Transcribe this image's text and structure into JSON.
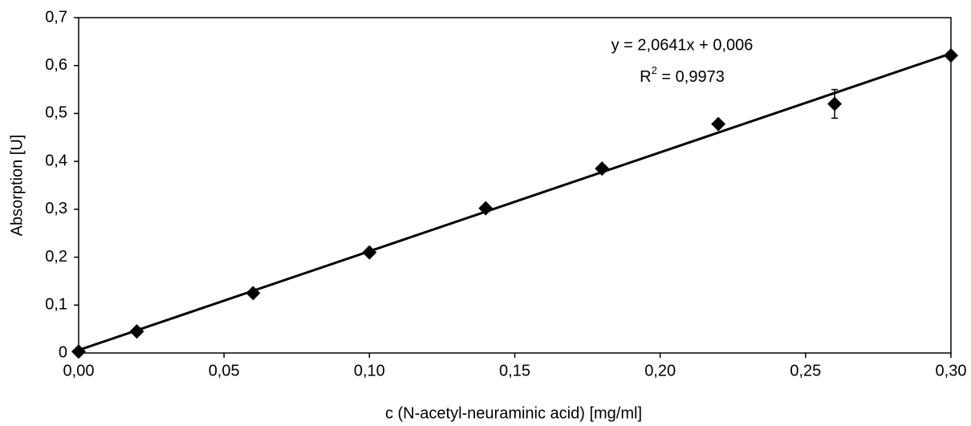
{
  "chart_data": {
    "type": "scatter",
    "x_label": "c (N-acetyl-neuraminic acid) [mg/ml]",
    "y_label": "Absorption [U]",
    "x": [
      0,
      0.02,
      0.06,
      0.1,
      0.14,
      0.18,
      0.22,
      0.26,
      0.3
    ],
    "series": [
      {
        "color": "#000000",
        "marker": "diamond",
        "values": [
          0.003,
          0.045,
          0.125,
          0.21,
          0.302,
          0.385,
          0.478,
          0.52,
          0.621
        ],
        "errors": [
          null,
          null,
          null,
          null,
          null,
          null,
          null,
          0.03,
          null
        ]
      }
    ],
    "trendline": {
      "slope": 2.0641,
      "intercept": 0.006,
      "color": "#000000",
      "equation": "y = 2,0641x + 0,006",
      "r2_base": "R",
      "r2_sup": "2",
      "r2_rest": " = 0,9973"
    },
    "xlim": [
      0,
      0.3
    ],
    "xticks": [
      {
        "value": 0,
        "label": "0,00"
      },
      {
        "value": 0.05,
        "label": "0,05"
      },
      {
        "value": 0.1,
        "label": "0,10"
      },
      {
        "value": 0.15,
        "label": "0,15"
      },
      {
        "value": 0.2,
        "label": "0,20"
      },
      {
        "value": 0.25,
        "label": "0,25"
      },
      {
        "value": 0.3,
        "label": "0,30"
      }
    ],
    "ylim": [
      0,
      0.7
    ],
    "yticks": [
      0,
      {
        "value": 0.1,
        "label": "0,1"
      },
      {
        "value": 0.2,
        "label": "0,2"
      },
      {
        "value": 0.3,
        "label": "0,3"
      },
      {
        "value": 0.4,
        "label": "0,4"
      },
      {
        "value": 0.5,
        "label": "0,5"
      },
      {
        "value": 0.6,
        "label": "0,6"
      },
      {
        "value": 0.7,
        "label": "0,7"
      }
    ],
    "grid": false
  }
}
